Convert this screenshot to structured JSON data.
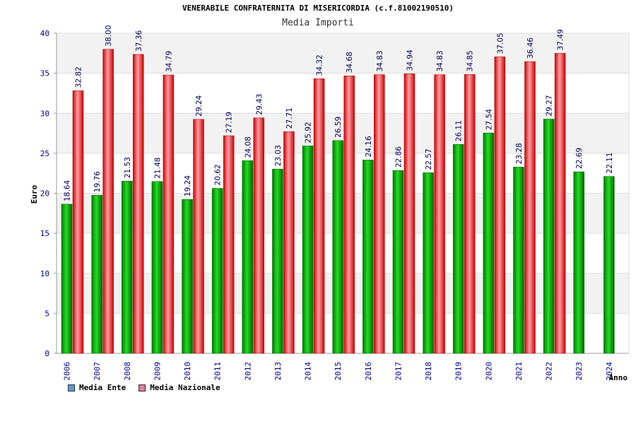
{
  "chart_data": {
    "type": "bar",
    "title": "VENERABILE CONFRATERNITA DI MISERICORDIA (c.f.81002190510)",
    "subtitle": "Media Importi",
    "xlabel": "Anno",
    "ylabel": "Euro",
    "ylim": [
      0,
      40
    ],
    "yticks": [
      0,
      5,
      10,
      15,
      20,
      25,
      30,
      35,
      40
    ],
    "grid": true,
    "legend_position": "bottom-left",
    "categories": [
      "2006",
      "2007",
      "2008",
      "2009",
      "2010",
      "2011",
      "2012",
      "2013",
      "2014",
      "2015",
      "2016",
      "2017",
      "2018",
      "2019",
      "2020",
      "2021",
      "2022",
      "2023",
      "2024"
    ],
    "series": [
      {
        "name": "Media Ente",
        "color": "#00aa00",
        "legend_color": "#5b9bd5",
        "values": [
          18.64,
          19.76,
          21.53,
          21.48,
          19.24,
          20.62,
          24.08,
          23.03,
          25.92,
          26.59,
          24.16,
          22.86,
          22.57,
          26.11,
          27.54,
          23.28,
          29.27,
          22.69,
          22.11
        ],
        "labels": [
          "18.64",
          "19.76",
          "21.53",
          "21.48",
          "19.24",
          "20.62",
          "24.08",
          "23.03",
          "25.92",
          "26.59",
          "24.16",
          "22.86",
          "22.57",
          "26.11",
          "27.54",
          "23.28",
          "29.27",
          "22.69",
          "22.11"
        ]
      },
      {
        "name": "Media Nazionale",
        "color": "#ee1111",
        "legend_color": "#e07aa0",
        "values": [
          32.82,
          38.0,
          37.36,
          34.79,
          29.24,
          27.19,
          29.43,
          27.71,
          34.32,
          34.68,
          34.83,
          34.94,
          34.83,
          34.85,
          37.05,
          36.46,
          37.49,
          null,
          null
        ],
        "labels": [
          "32.82",
          "38.00",
          "37.36",
          "34.79",
          "29.24",
          "27.19",
          "29.43",
          "27.71",
          "34.32",
          "34.68",
          "34.83",
          "34.94",
          "34.83",
          "34.85",
          "37.05",
          "36.46",
          "37.49",
          "",
          ""
        ]
      }
    ]
  }
}
